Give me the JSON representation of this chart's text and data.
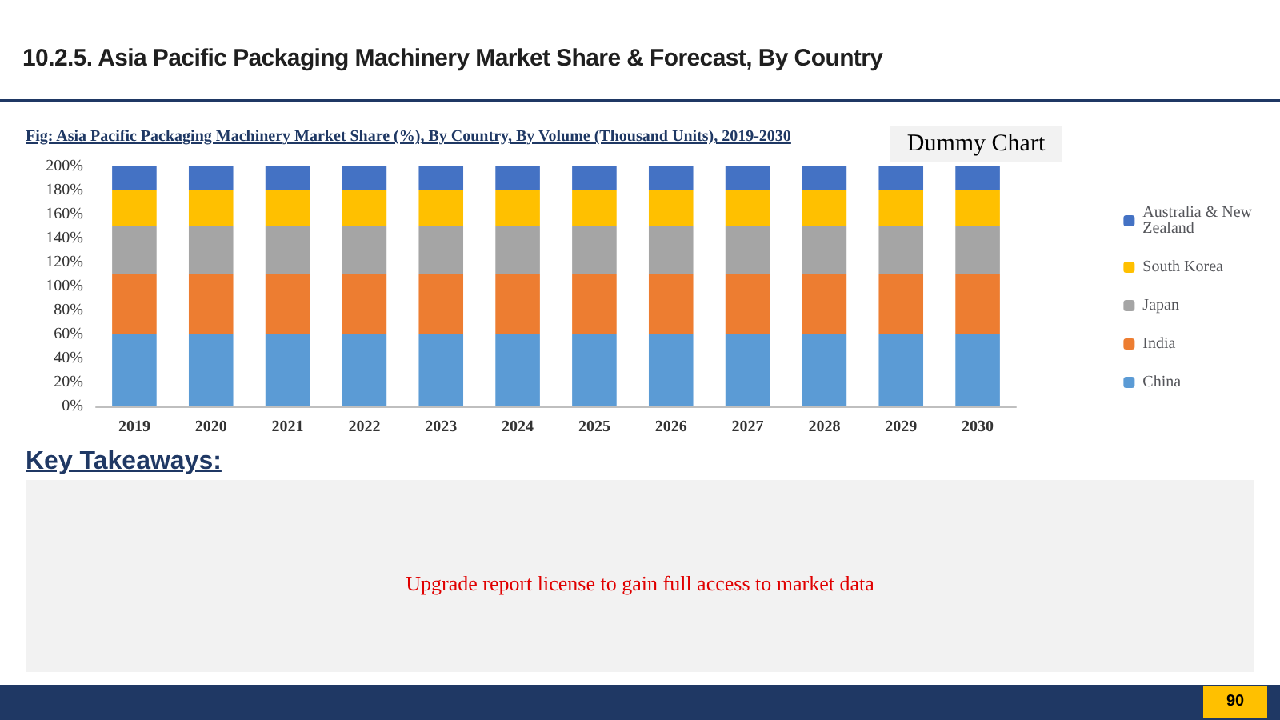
{
  "chart_data": {
    "type": "bar",
    "stacked": true,
    "title": "10.2.5. Asia Pacific Packaging Machinery Market Share & Forecast, By Country",
    "subtitle": "Fig: Asia Pacific Packaging Machinery Market Share (%), By Country, By Volume (Thousand Units), 2019-2030",
    "categories": [
      "2019",
      "2020",
      "2021",
      "2022",
      "2023",
      "2024",
      "2025",
      "2026",
      "2027",
      "2028",
      "2029",
      "2030"
    ],
    "series": [
      {
        "name": "China",
        "color": "#5b9bd5",
        "values": [
          60,
          60,
          60,
          60,
          60,
          60,
          60,
          60,
          60,
          60,
          60,
          60
        ]
      },
      {
        "name": "India",
        "color": "#ed7d31",
        "values": [
          50,
          50,
          50,
          50,
          50,
          50,
          50,
          50,
          50,
          50,
          50,
          50
        ]
      },
      {
        "name": "Japan",
        "color": "#a5a5a5",
        "values": [
          40,
          40,
          40,
          40,
          40,
          40,
          40,
          40,
          40,
          40,
          40,
          40
        ]
      },
      {
        "name": "South Korea",
        "color": "#ffc000",
        "values": [
          30,
          30,
          30,
          30,
          30,
          30,
          30,
          30,
          30,
          30,
          30,
          30
        ]
      },
      {
        "name": "Australia & New Zealand",
        "color": "#4472c4",
        "values": [
          20,
          20,
          20,
          20,
          20,
          20,
          20,
          20,
          20,
          20,
          20,
          20
        ]
      }
    ],
    "ylim": [
      0,
      200
    ],
    "yticks": [
      {
        "value": 0,
        "label": "0%"
      },
      {
        "value": 20,
        "label": "20%"
      },
      {
        "value": 40,
        "label": "40%"
      },
      {
        "value": 60,
        "label": "60%"
      },
      {
        "value": 80,
        "label": "80%"
      },
      {
        "value": 100,
        "label": "100%"
      },
      {
        "value": 120,
        "label": "120%"
      },
      {
        "value": 140,
        "label": "140%"
      },
      {
        "value": 160,
        "label": "160%"
      },
      {
        "value": 180,
        "label": "180%"
      },
      {
        "value": 200,
        "label": "200%"
      }
    ],
    "grid": false,
    "legend": "right",
    "annotations": [
      "Dummy Chart",
      "Key Takeaways:",
      "Upgrade report license to gain full access to market data",
      "90"
    ]
  }
}
